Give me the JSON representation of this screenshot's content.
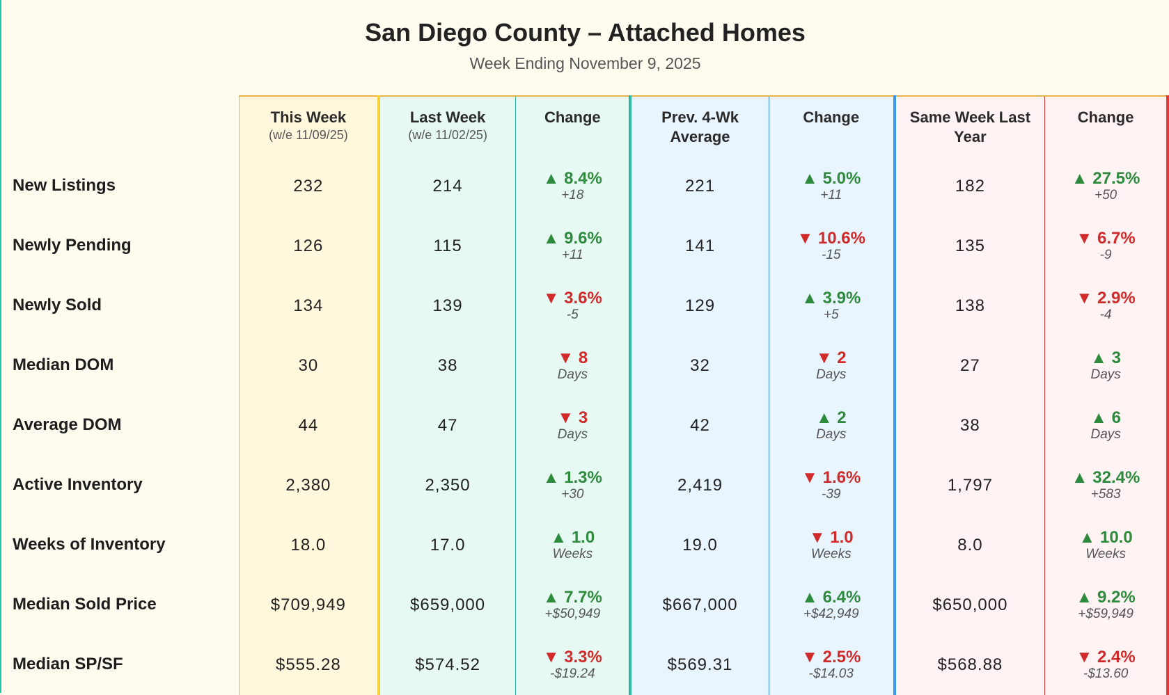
{
  "title": "San Diego County – Attached Homes",
  "subtitle": "Week Ending November 9, 2025",
  "colors": {
    "up": "#2e8b3e",
    "down": "#d02a2a"
  },
  "columns": [
    {
      "label": "This Week",
      "sub": "(w/e 11/09/25)"
    },
    {
      "label": "Last Week",
      "sub": "(w/e 11/02/25)"
    },
    {
      "label": "Change",
      "sub": ""
    },
    {
      "label": "Prev. 4-Wk Average",
      "sub": ""
    },
    {
      "label": "Change",
      "sub": ""
    },
    {
      "label": "Same Week Last Year",
      "sub": ""
    },
    {
      "label": "Change",
      "sub": ""
    }
  ],
  "rows": [
    {
      "label": "New Listings",
      "this_week": "232",
      "last_week": "214",
      "chg_week": {
        "dir": "up",
        "value": "8.4%",
        "delta": "+18"
      },
      "prev4": "221",
      "chg_prev4": {
        "dir": "up",
        "value": "5.0%",
        "delta": "+11"
      },
      "last_year": "182",
      "chg_year": {
        "dir": "up",
        "value": "27.5%",
        "delta": "+50"
      }
    },
    {
      "label": "Newly Pending",
      "this_week": "126",
      "last_week": "115",
      "chg_week": {
        "dir": "up",
        "value": "9.6%",
        "delta": "+11"
      },
      "prev4": "141",
      "chg_prev4": {
        "dir": "down",
        "value": "10.6%",
        "delta": "-15"
      },
      "last_year": "135",
      "chg_year": {
        "dir": "down",
        "value": "6.7%",
        "delta": "-9"
      }
    },
    {
      "label": "Newly Sold",
      "this_week": "134",
      "last_week": "139",
      "chg_week": {
        "dir": "down",
        "value": "3.6%",
        "delta": "-5"
      },
      "prev4": "129",
      "chg_prev4": {
        "dir": "up",
        "value": "3.9%",
        "delta": "+5"
      },
      "last_year": "138",
      "chg_year": {
        "dir": "down",
        "value": "2.9%",
        "delta": "-4"
      }
    },
    {
      "label": "Median DOM",
      "this_week": "30",
      "last_week": "38",
      "chg_week": {
        "dir": "down",
        "value": "8",
        "delta": "Days"
      },
      "prev4": "32",
      "chg_prev4": {
        "dir": "down",
        "value": "2",
        "delta": "Days"
      },
      "last_year": "27",
      "chg_year": {
        "dir": "up",
        "value": "3",
        "delta": "Days"
      }
    },
    {
      "label": "Average DOM",
      "this_week": "44",
      "last_week": "47",
      "chg_week": {
        "dir": "down",
        "value": "3",
        "delta": "Days"
      },
      "prev4": "42",
      "chg_prev4": {
        "dir": "up",
        "value": "2",
        "delta": "Days"
      },
      "last_year": "38",
      "chg_year": {
        "dir": "up",
        "value": "6",
        "delta": "Days"
      }
    },
    {
      "label": "Active Inventory",
      "this_week": "2,380",
      "last_week": "2,350",
      "chg_week": {
        "dir": "up",
        "value": "1.3%",
        "delta": "+30"
      },
      "prev4": "2,419",
      "chg_prev4": {
        "dir": "down",
        "value": "1.6%",
        "delta": "-39"
      },
      "last_year": "1,797",
      "chg_year": {
        "dir": "up",
        "value": "32.4%",
        "delta": "+583"
      }
    },
    {
      "label": "Weeks of Inventory",
      "this_week": "18.0",
      "last_week": "17.0",
      "chg_week": {
        "dir": "up",
        "value": "1.0",
        "delta": "Weeks"
      },
      "prev4": "19.0",
      "chg_prev4": {
        "dir": "down",
        "value": "1.0",
        "delta": "Weeks"
      },
      "last_year": "8.0",
      "chg_year": {
        "dir": "up",
        "value": "10.0",
        "delta": "Weeks"
      }
    },
    {
      "label": "Median Sold Price",
      "this_week": "$709,949",
      "last_week": "$659,000",
      "chg_week": {
        "dir": "up",
        "value": "7.7%",
        "delta": "+$50,949"
      },
      "prev4": "$667,000",
      "chg_prev4": {
        "dir": "up",
        "value": "6.4%",
        "delta": "+$42,949"
      },
      "last_year": "$650,000",
      "chg_year": {
        "dir": "up",
        "value": "9.2%",
        "delta": "+$59,949"
      }
    },
    {
      "label": "Median SP/SF",
      "this_week": "$555.28",
      "last_week": "$574.52",
      "chg_week": {
        "dir": "down",
        "value": "3.3%",
        "delta": "-$19.24"
      },
      "prev4": "$569.31",
      "chg_prev4": {
        "dir": "down",
        "value": "2.5%",
        "delta": "-$14.03"
      },
      "last_year": "$568.88",
      "chg_year": {
        "dir": "down",
        "value": "2.4%",
        "delta": "-$13.60"
      }
    }
  ]
}
